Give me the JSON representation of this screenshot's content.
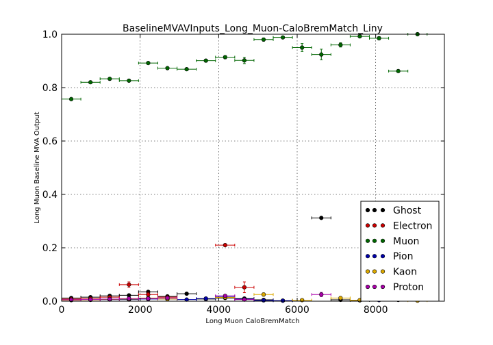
{
  "chart_data": {
    "type": "scatter",
    "title": "BaselineMVAVInputs_Long_Muon-CaloBremMatch_Liny",
    "xlabel": "Long Muon CaloBremMatch",
    "ylabel": "Long Muon Baseline MVA Output",
    "xlim": [
      0,
      9750
    ],
    "ylim": [
      0.0,
      1.0
    ],
    "xticks": [
      0,
      2000,
      4000,
      6000,
      8000
    ],
    "xtick_labels": [
      "0",
      "2000",
      "4000",
      "6000",
      "8000"
    ],
    "yticks": [
      0.0,
      0.2,
      0.4,
      0.6,
      0.8,
      1.0
    ],
    "ytick_labels": [
      "0.0",
      "0.2",
      "0.4",
      "0.6",
      "0.8",
      "1.0"
    ],
    "grid": true,
    "legend_position": "lower-right",
    "bin_half_width": 245,
    "series": [
      {
        "name": "Ghost",
        "color": "#000000",
        "points": [
          [
            245,
            0.012,
            0.002
          ],
          [
            735,
            0.015,
            0.002
          ],
          [
            1225,
            0.02,
            0.003
          ],
          [
            1715,
            0.022,
            0.004
          ],
          [
            2205,
            0.035,
            0.004
          ],
          [
            2695,
            0.018,
            0.003
          ],
          [
            3185,
            0.028,
            0.004
          ],
          [
            3675,
            0.008,
            0.003
          ],
          [
            4165,
            0.012,
            0.004
          ],
          [
            4655,
            0.01,
            0.004
          ],
          [
            5145,
            0.005,
            0.003
          ],
          [
            5635,
            0.002,
            0.002
          ],
          [
            6615,
            0.312,
            0.004
          ],
          [
            7105,
            0.005,
            0.003
          ],
          [
            7595,
            0.003,
            0.003
          ],
          [
            8085,
            0.008,
            0.003
          ],
          [
            8575,
            0.005,
            0.003
          ]
        ]
      },
      {
        "name": "Electron",
        "color": "#cc0000",
        "points": [
          [
            245,
            0.008,
            0.002
          ],
          [
            735,
            0.01,
            0.002
          ],
          [
            1225,
            0.015,
            0.003
          ],
          [
            1715,
            0.062,
            0.01
          ],
          [
            2205,
            0.025,
            0.008
          ],
          [
            2695,
            0.015,
            0.004
          ],
          [
            4165,
            0.21,
            0.004
          ],
          [
            4655,
            0.052,
            0.02
          ]
        ]
      },
      {
        "name": "Muon",
        "color": "#006600",
        "points": [
          [
            245,
            0.757,
            0.003
          ],
          [
            735,
            0.82,
            0.003
          ],
          [
            1225,
            0.833,
            0.003
          ],
          [
            1715,
            0.826,
            0.003
          ],
          [
            2205,
            0.892,
            0.004
          ],
          [
            2695,
            0.873,
            0.004
          ],
          [
            3185,
            0.869,
            0.004
          ],
          [
            3675,
            0.901,
            0.005
          ],
          [
            4165,
            0.914,
            0.006
          ],
          [
            4655,
            0.902,
            0.012
          ],
          [
            5145,
            0.98,
            0.006
          ],
          [
            5635,
            0.988,
            0.004
          ],
          [
            6125,
            0.95,
            0.015
          ],
          [
            6615,
            0.924,
            0.02
          ],
          [
            7105,
            0.96,
            0.008
          ],
          [
            7595,
            0.992,
            0.004
          ],
          [
            8085,
            0.985,
            0.006
          ],
          [
            8575,
            0.862,
            0.003
          ],
          [
            9065,
            1.0,
            0.002
          ]
        ]
      },
      {
        "name": "Pion",
        "color": "#0000aa",
        "points": [
          [
            245,
            0.004,
            0.002
          ],
          [
            735,
            0.005,
            0.002
          ],
          [
            1225,
            0.006,
            0.002
          ],
          [
            1715,
            0.006,
            0.002
          ],
          [
            2205,
            0.008,
            0.003
          ],
          [
            2695,
            0.008,
            0.003
          ],
          [
            3185,
            0.006,
            0.003
          ],
          [
            3675,
            0.01,
            0.003
          ],
          [
            4165,
            0.018,
            0.005
          ],
          [
            4655,
            0.008,
            0.004
          ],
          [
            5145,
            0.003,
            0.002
          ],
          [
            5635,
            0.002,
            0.002
          ],
          [
            8085,
            0.004,
            0.003
          ],
          [
            8575,
            0.005,
            0.003
          ]
        ]
      },
      {
        "name": "Kaon",
        "color": "#ddaa00",
        "points": [
          [
            245,
            0.004,
            0.002
          ],
          [
            735,
            0.005,
            0.002
          ],
          [
            1225,
            0.007,
            0.002
          ],
          [
            1715,
            0.008,
            0.003
          ],
          [
            2205,
            0.012,
            0.004
          ],
          [
            2695,
            0.008,
            0.003
          ],
          [
            4165,
            0.014,
            0.004
          ],
          [
            5145,
            0.025,
            0.006
          ],
          [
            6125,
            0.004,
            0.003
          ],
          [
            7105,
            0.012,
            0.004
          ],
          [
            7595,
            0.004,
            0.003
          ],
          [
            9065,
            0.002,
            0.002
          ]
        ]
      },
      {
        "name": "Proton",
        "color": "#aa00aa",
        "points": [
          [
            245,
            0.005,
            0.002
          ],
          [
            735,
            0.006,
            0.002
          ],
          [
            1225,
            0.008,
            0.002
          ],
          [
            1715,
            0.01,
            0.003
          ],
          [
            2205,
            0.01,
            0.003
          ],
          [
            2695,
            0.012,
            0.003
          ],
          [
            4165,
            0.02,
            0.004
          ],
          [
            4655,
            0.006,
            0.004
          ],
          [
            6615,
            0.025,
            0.008
          ],
          [
            8085,
            0.01,
            0.004
          ],
          [
            8575,
            0.012,
            0.004
          ]
        ]
      }
    ]
  }
}
